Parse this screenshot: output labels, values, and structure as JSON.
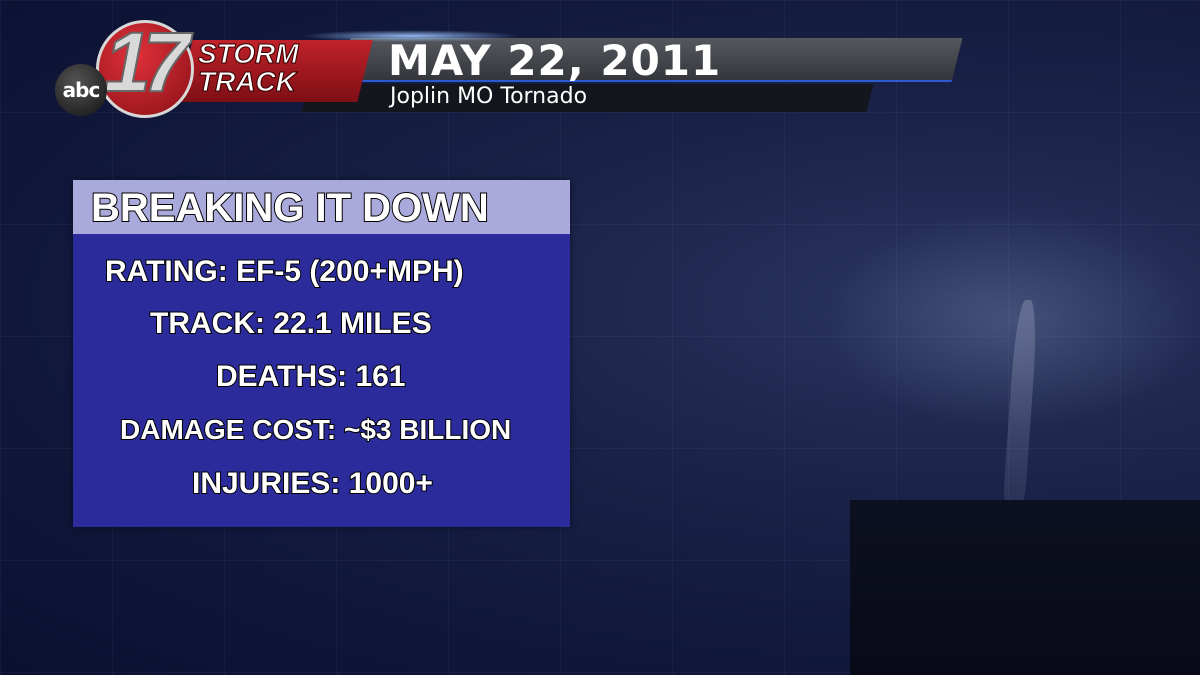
{
  "logo": {
    "network": "abc",
    "channel": "17",
    "brand_line1": "STORM",
    "brand_line2": "TRACK"
  },
  "header": {
    "title": "MAY 22, 2011",
    "subtitle": "Joplin MO Tornado"
  },
  "panel": {
    "heading": "BREAKING IT DOWN",
    "items": [
      "RATING: EF-5 (200+MPH)",
      "TRACK: 22.1 MILES",
      "DEATHS: 161",
      "DAMAGE COST: ~$3 BILLION",
      "INJURIES: 1000+"
    ]
  },
  "colors": {
    "panel_body": "#2b2b9c",
    "panel_header": "#a9a9dc",
    "brand_red": "#c0222a"
  }
}
